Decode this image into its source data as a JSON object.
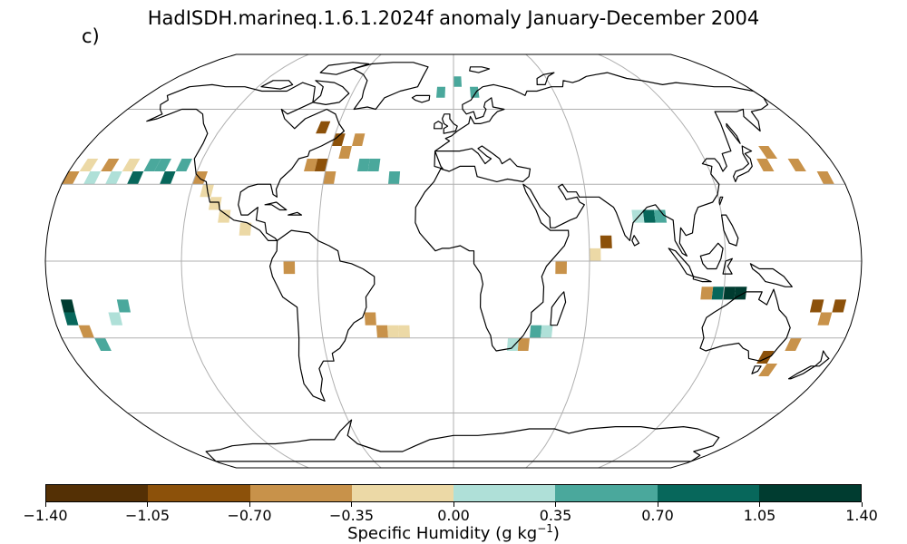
{
  "title": "HadISDH.marineq.1.6.1.2024f anomaly January-December 2004",
  "panel_label": "c)",
  "colorbar": {
    "label_prefix": "Specific Humidity (g kg",
    "label_exp": "−1",
    "label_suffix": ")",
    "ticks": [
      "−1.40",
      "−1.05",
      "−0.70",
      "−0.35",
      "0.00",
      "0.35",
      "0.70",
      "1.05",
      "1.40"
    ],
    "bins": [
      {
        "range": [
          -1.4,
          -1.05
        ],
        "color": "#543005"
      },
      {
        "range": [
          -1.05,
          -0.7
        ],
        "color": "#8c510a"
      },
      {
        "range": [
          -0.7,
          -0.35
        ],
        "color": "#c8924a"
      },
      {
        "range": [
          -0.35,
          0.0
        ],
        "color": "#ecd9a6"
      },
      {
        "range": [
          0.0,
          0.35
        ],
        "color": "#afe0d8"
      },
      {
        "range": [
          0.35,
          0.7
        ],
        "color": "#4aa89c"
      },
      {
        "range": [
          0.7,
          1.05
        ],
        "color": "#07675b"
      },
      {
        "range": [
          1.05,
          1.4
        ],
        "color": "#003c30"
      }
    ]
  },
  "map": {
    "projection": "robinson",
    "gridlines": true,
    "coastlines": true,
    "anomaly_cells": [
      {
        "lon": -147.5,
        "lat": 32.5,
        "bin": 6
      },
      {
        "lon": -132.5,
        "lat": 32.5,
        "bin": 6
      },
      {
        "lon": -127.5,
        "lat": 37.5,
        "bin": 5
      },
      {
        "lon": -137.5,
        "lat": 37.5,
        "bin": 5
      },
      {
        "lon": -142.5,
        "lat": 37.5,
        "bin": 5
      },
      {
        "lon": -152.5,
        "lat": 37.5,
        "bin": 3
      },
      {
        "lon": -162.5,
        "lat": 37.5,
        "bin": 2
      },
      {
        "lon": -157.5,
        "lat": 32.5,
        "bin": 4
      },
      {
        "lon": -167.5,
        "lat": 32.5,
        "bin": 4
      },
      {
        "lon": -172.5,
        "lat": 37.5,
        "bin": 3
      },
      {
        "lon": -177.5,
        "lat": 32.5,
        "bin": 2
      },
      {
        "lon": -117.5,
        "lat": 32.5,
        "bin": 2
      },
      {
        "lon": -112.5,
        "lat": 27.5,
        "bin": 3
      },
      {
        "lon": -107.5,
        "lat": 22.5,
        "bin": 3
      },
      {
        "lon": -102.5,
        "lat": 17.5,
        "bin": 3
      },
      {
        "lon": -92.5,
        "lat": 12.5,
        "bin": 3
      },
      {
        "lon": -67.5,
        "lat": 37.5,
        "bin": 2
      },
      {
        "lon": -62.5,
        "lat": 37.5,
        "bin": 1
      },
      {
        "lon": -57.5,
        "lat": 32.5,
        "bin": 2
      },
      {
        "lon": -52.5,
        "lat": 42.5,
        "bin": 2
      },
      {
        "lon": -47.5,
        "lat": 47.5,
        "bin": 2
      },
      {
        "lon": -57.5,
        "lat": 47.5,
        "bin": 1
      },
      {
        "lon": -67.5,
        "lat": 52.5,
        "bin": 1
      },
      {
        "lon": -42.5,
        "lat": 37.5,
        "bin": 5
      },
      {
        "lon": -37.5,
        "lat": 37.5,
        "bin": 5
      },
      {
        "lon": -27.5,
        "lat": 32.5,
        "bin": 5
      },
      {
        "lon": -7.5,
        "lat": 67.5,
        "bin": 5
      },
      {
        "lon": 2.5,
        "lat": 72.5,
        "bin": 5
      },
      {
        "lon": 12.5,
        "lat": 67.5,
        "bin": 5
      },
      {
        "lon": 87.5,
        "lat": 17.5,
        "bin": 6
      },
      {
        "lon": 92.5,
        "lat": 17.5,
        "bin": 5
      },
      {
        "lon": 82.5,
        "lat": 17.5,
        "bin": 4
      },
      {
        "lon": 67.5,
        "lat": 7.5,
        "bin": 1
      },
      {
        "lon": 62.5,
        "lat": 2.5,
        "bin": 3
      },
      {
        "lon": 122.5,
        "lat": -12.5,
        "bin": 7
      },
      {
        "lon": 127.5,
        "lat": -12.5,
        "bin": 7
      },
      {
        "lon": 117.5,
        "lat": -12.5,
        "bin": 6
      },
      {
        "lon": 112.5,
        "lat": -12.5,
        "bin": 2
      },
      {
        "lon": 147.5,
        "lat": 37.5,
        "bin": 2
      },
      {
        "lon": 152.5,
        "lat": 42.5,
        "bin": 2
      },
      {
        "lon": 162.5,
        "lat": 37.5,
        "bin": 2
      },
      {
        "lon": 172.5,
        "lat": 32.5,
        "bin": 2
      },
      {
        "lon": 172.5,
        "lat": -17.5,
        "bin": 1
      },
      {
        "lon": 162.5,
        "lat": -17.5,
        "bin": 1
      },
      {
        "lon": 167.5,
        "lat": -22.5,
        "bin": 2
      },
      {
        "lon": 157.5,
        "lat": -32.5,
        "bin": 2
      },
      {
        "lon": 147.5,
        "lat": -37.5,
        "bin": 1
      },
      {
        "lon": 152.5,
        "lat": -42.5,
        "bin": 2
      },
      {
        "lon": -172.5,
        "lat": -17.5,
        "bin": 7
      },
      {
        "lon": -172.5,
        "lat": -22.5,
        "bin": 6
      },
      {
        "lon": -167.5,
        "lat": -27.5,
        "bin": 2
      },
      {
        "lon": -162.5,
        "lat": -32.5,
        "bin": 5
      },
      {
        "lon": -147.5,
        "lat": -17.5,
        "bin": 5
      },
      {
        "lon": -152.5,
        "lat": -22.5,
        "bin": 4
      },
      {
        "lon": -37.5,
        "lat": -22.5,
        "bin": 2
      },
      {
        "lon": -32.5,
        "lat": -27.5,
        "bin": 2
      },
      {
        "lon": -27.5,
        "lat": -27.5,
        "bin": 3
      },
      {
        "lon": -22.5,
        "lat": -27.5,
        "bin": 3
      },
      {
        "lon": 32.5,
        "lat": -32.5,
        "bin": 2
      },
      {
        "lon": 27.5,
        "lat": -32.5,
        "bin": 4
      },
      {
        "lon": 37.5,
        "lat": -27.5,
        "bin": 5
      },
      {
        "lon": 42.5,
        "lat": -27.5,
        "bin": 4
      },
      {
        "lon": -72.5,
        "lat": -2.5,
        "bin": 2
      },
      {
        "lon": 47.5,
        "lat": -2.5,
        "bin": 2
      }
    ]
  }
}
